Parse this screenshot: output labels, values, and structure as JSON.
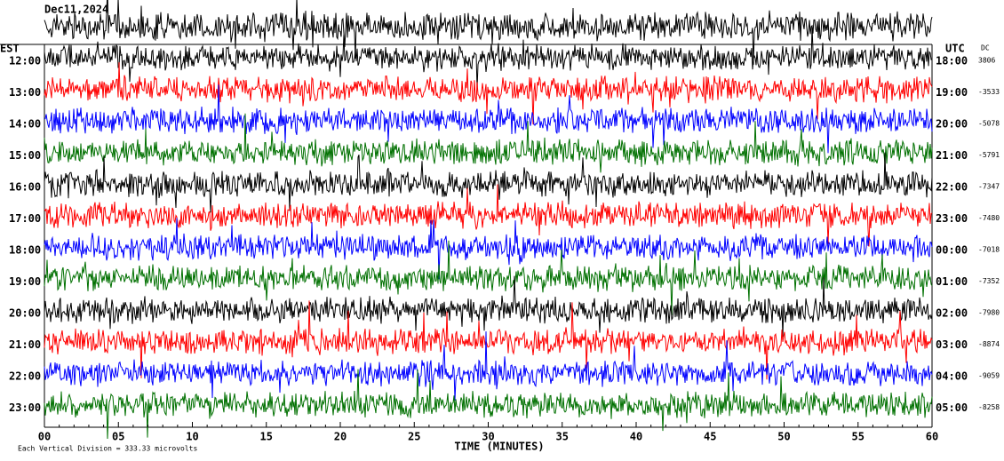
{
  "header": {
    "date": "Dec11,2024",
    "left_zone": "EST",
    "right_zone": "UTC",
    "dc_label": "DC"
  },
  "rows": [
    {
      "est": "12:00",
      "utc": "18:00",
      "dc": 3806,
      "color": "#000000"
    },
    {
      "est": "13:00",
      "utc": "19:00",
      "dc": -3533,
      "color": "#ff0000"
    },
    {
      "est": "14:00",
      "utc": "20:00",
      "dc": -5078,
      "color": "#0000ff"
    },
    {
      "est": "15:00",
      "utc": "21:00",
      "dc": -5791,
      "color": "#007000"
    },
    {
      "est": "16:00",
      "utc": "22:00",
      "dc": -7347,
      "color": "#000000"
    },
    {
      "est": "17:00",
      "utc": "23:00",
      "dc": -7480,
      "color": "#ff0000"
    },
    {
      "est": "18:00",
      "utc": "00:00",
      "dc": -7018,
      "color": "#0000ff"
    },
    {
      "est": "19:00",
      "utc": "01:00",
      "dc": -7352,
      "color": "#007000"
    },
    {
      "est": "20:00",
      "utc": "02:00",
      "dc": -7980,
      "color": "#000000"
    },
    {
      "est": "21:00",
      "utc": "03:00",
      "dc": -8874,
      "color": "#ff0000"
    },
    {
      "est": "22:00",
      "utc": "04:00",
      "dc": -9059,
      "color": "#0000ff"
    },
    {
      "est": "23:00",
      "utc": "05:00",
      "dc": -8258,
      "color": "#007000"
    }
  ],
  "x_axis": {
    "ticks": [
      "00",
      "05",
      "10",
      "15",
      "20",
      "25",
      "30",
      "35",
      "40",
      "45",
      "50",
      "55",
      "60"
    ],
    "label": "TIME (MINUTES)"
  },
  "footer": {
    "scale_note": "Each Vertical Division =  333.33 microvolts"
  }
}
